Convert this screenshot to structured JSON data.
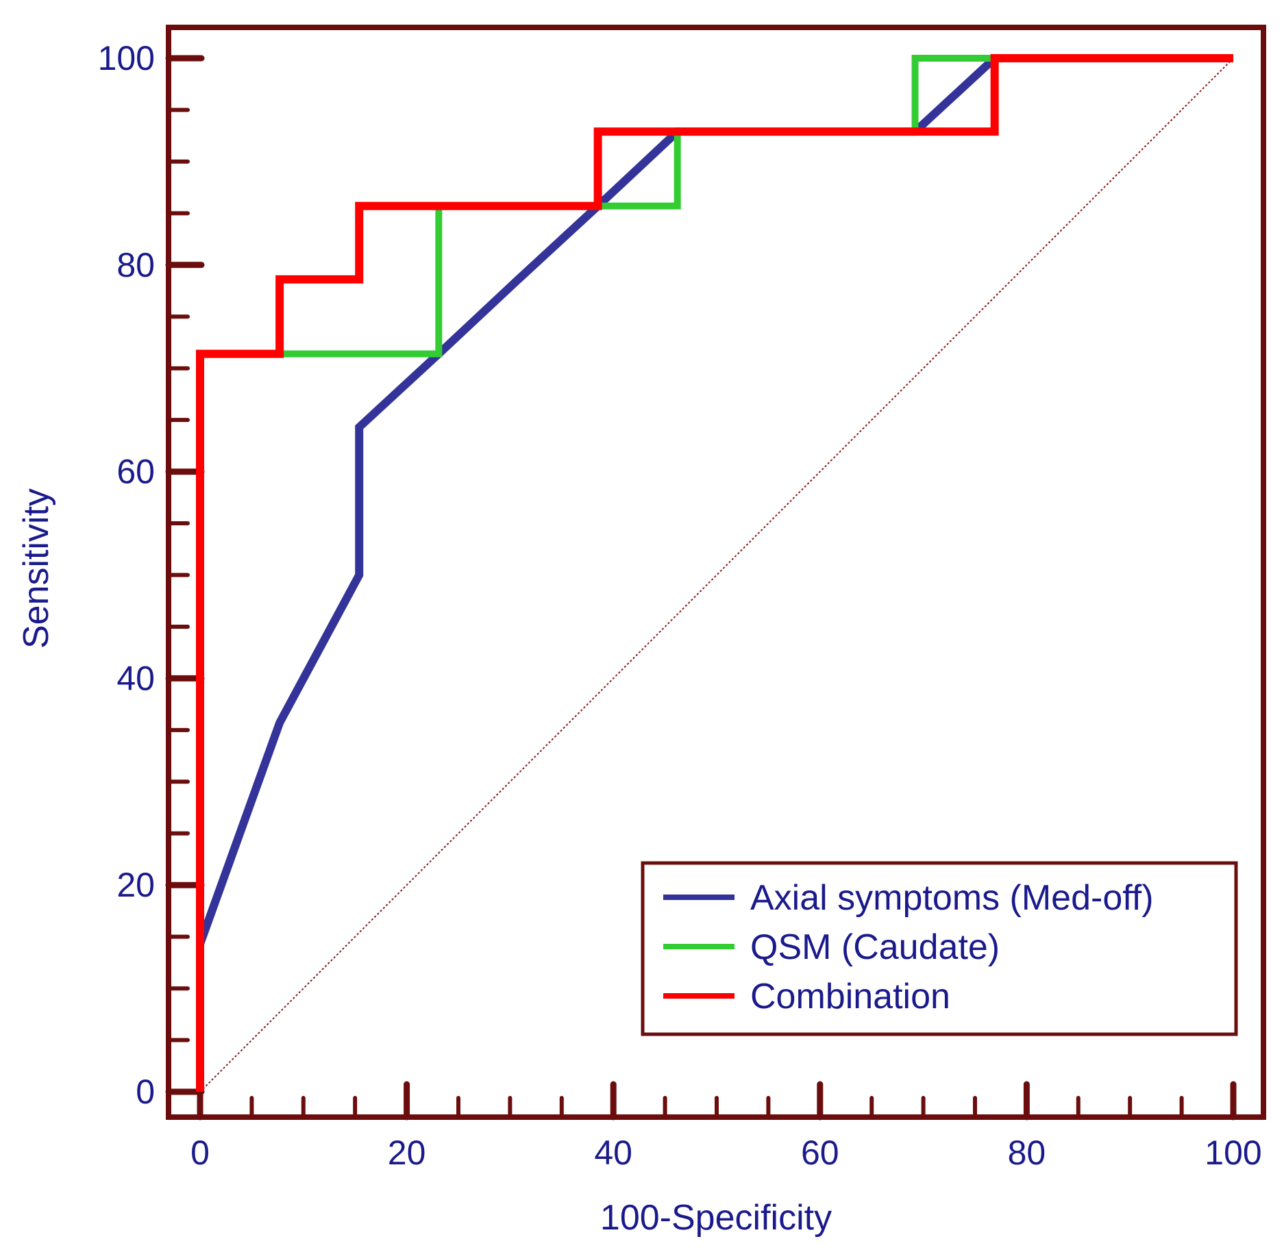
{
  "chart_data": {
    "type": "line",
    "title": "",
    "xlabel": "100-Specificity",
    "ylabel": "Sensitivity",
    "xlim": [
      0,
      100
    ],
    "ylim": [
      0,
      100
    ],
    "xticks": [
      "0",
      "20",
      "40",
      "60",
      "80",
      "100"
    ],
    "yticks": [
      "0",
      "20",
      "40",
      "60",
      "80",
      "100"
    ],
    "legend_position": "bottom-right",
    "reference_line": {
      "name": "diagonal",
      "x": [
        0,
        100
      ],
      "y": [
        0,
        100
      ],
      "color": "#8b1a1a"
    },
    "series": [
      {
        "name": "Axial symptoms (Med-off)",
        "color": "#333399",
        "x": [
          0,
          0,
          7.7,
          15.4,
          15.4,
          23.1,
          30.8,
          38.5,
          46.2,
          46.2,
          53.8,
          61.5,
          69.2,
          76.9,
          84.6,
          92.3,
          100
        ],
        "y": [
          0,
          14.3,
          35.7,
          50,
          64.3,
          71.4,
          78.6,
          85.7,
          92.9,
          92.9,
          92.9,
          92.9,
          92.9,
          100,
          100,
          100,
          100
        ]
      },
      {
        "name": "QSM (Caudate)",
        "color": "#33cc33",
        "x": [
          0,
          0,
          23.1,
          23.1,
          46.2,
          46.2,
          69.2,
          69.2,
          100
        ],
        "y": [
          0,
          71.4,
          71.4,
          85.7,
          85.7,
          92.9,
          92.9,
          100,
          100
        ]
      },
      {
        "name": "Combination",
        "color": "#ff0000",
        "x": [
          0,
          0,
          7.7,
          7.7,
          15.4,
          15.4,
          38.5,
          38.5,
          76.9,
          76.9,
          100
        ],
        "y": [
          0,
          71.4,
          71.4,
          78.6,
          78.6,
          85.7,
          85.7,
          92.9,
          92.9,
          100,
          100
        ]
      }
    ]
  }
}
